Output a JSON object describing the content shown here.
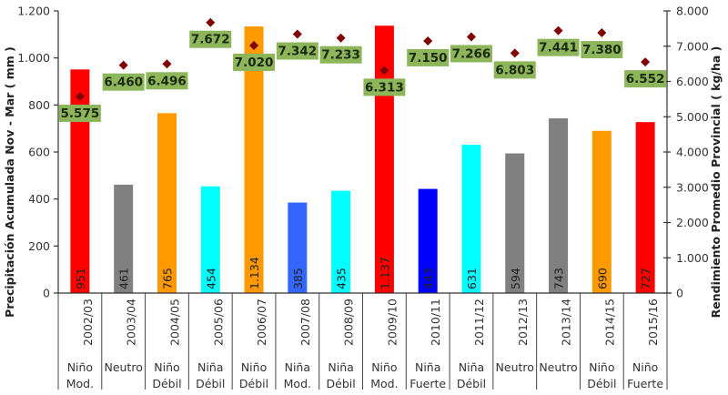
{
  "chart_data": {
    "type": "bar",
    "title": "",
    "categories": [
      "2002/03",
      "2003/04",
      "2004/05",
      "2005/06",
      "2006/07",
      "2007/08",
      "2008/09",
      "2009/10",
      "2010/11",
      "2011/12",
      "2012/13",
      "2013/14",
      "2014/15",
      "2015/16"
    ],
    "enso": [
      "Niño Mod.",
      "Neutro",
      "Niño Débil",
      "Niña Débil",
      "Niño Débil",
      "Niña Mod.",
      "Niña Débil",
      "Niño Mod.",
      "Niña Fuerte",
      "Niña Débil",
      "Neutro",
      "Neutro",
      "Niño Débil",
      "Niño Fuerte"
    ],
    "series": [
      {
        "name": "Precipitación Acumulada Nov - Mar ( mm )",
        "type": "bar",
        "axis": "left",
        "values": [
          951,
          461,
          765,
          454,
          1134,
          385,
          435,
          1137,
          443,
          631,
          594,
          743,
          690,
          727
        ],
        "labels": [
          "951",
          "461",
          "765",
          "454",
          "1.134",
          "385",
          "435",
          "1.137",
          "443",
          "631",
          "594",
          "743",
          "690",
          "727"
        ],
        "colors": [
          "#ff0000",
          "#808080",
          "#ff9900",
          "#00ffff",
          "#ff9900",
          "#3366ff",
          "#00ffff",
          "#ff0000",
          "#0000ff",
          "#00ffff",
          "#808080",
          "#808080",
          "#ff9900",
          "#ff0000"
        ]
      },
      {
        "name": "Rendimiento Promedio Provincial ( kg/ha )",
        "type": "scatter",
        "axis": "right",
        "values": [
          5575,
          6460,
          6496,
          7672,
          7020,
          7342,
          7233,
          6313,
          7150,
          7266,
          6803,
          7441,
          7380,
          6552
        ],
        "labels": [
          "5.575",
          "6.460",
          "6.496",
          "7.672",
          "7.020",
          "7.342",
          "7.233",
          "6.313",
          "7.150",
          "7.266",
          "6.803",
          "7.441",
          "7.380",
          "6.552"
        ],
        "marker_color": "#7f0000",
        "label_bg": "#8db55a"
      }
    ],
    "ylabel": "Precipitación Acumulada Nov - Mar ( mm )",
    "y2label": "Rendimiento Promedio Provincial ( kg/ha )",
    "ylim": [
      0,
      1200
    ],
    "y2lim": [
      0,
      8000
    ],
    "yticks": [
      "0",
      "200",
      "400",
      "600",
      "800",
      "1.000",
      "1.200"
    ],
    "yticks_values": [
      0,
      200,
      400,
      600,
      800,
      1000,
      1200
    ],
    "y2ticks": [
      "0",
      "1.000",
      "2.000",
      "3.000",
      "4.000",
      "5.000",
      "6.000",
      "7.000",
      "8.000"
    ],
    "y2ticks_values": [
      0,
      1000,
      2000,
      3000,
      4000,
      5000,
      6000,
      7000,
      8000
    ],
    "grid": false,
    "legend": "none"
  }
}
